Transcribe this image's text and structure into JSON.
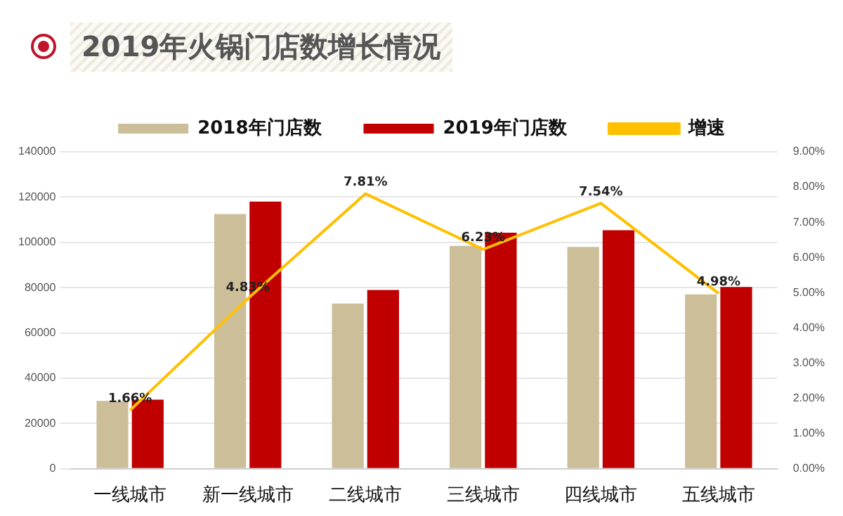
{
  "chart_data": {
    "type": "bar",
    "title": "2019年火锅门店数增长情况",
    "categories": [
      "一线城市",
      "新一线城市",
      "二线城市",
      "三线城市",
      "四线城市",
      "五线城市"
    ],
    "series": [
      {
        "name": "2018年门店数",
        "color": "#cdbe9a",
        "values": [
          30000,
          112500,
          73000,
          98500,
          98000,
          77000
        ]
      },
      {
        "name": "2019年门店数",
        "color": "#c00000",
        "values": [
          30500,
          118000,
          79000,
          104300,
          105400,
          80300
        ]
      },
      {
        "name": "增速",
        "type": "line",
        "axis": "y2",
        "color": "#ffc000",
        "values": [
          1.66,
          4.83,
          7.81,
          6.23,
          7.54,
          4.98
        ],
        "value_labels": [
          "1.66%",
          "4.83%",
          "7.81%",
          "6.23%",
          "7.54%",
          "4.98%"
        ]
      }
    ],
    "ylim": [
      0,
      140000
    ],
    "yticks": [
      0,
      20000,
      40000,
      60000,
      80000,
      100000,
      120000,
      140000
    ],
    "y2lim": [
      0,
      9
    ],
    "y2ticks": [
      {
        "value": 0,
        "label": "0.00%"
      },
      {
        "value": 1,
        "label": "1.00%"
      },
      {
        "value": 2,
        "label": "2.00%"
      },
      {
        "value": 3,
        "label": "3.00%"
      },
      {
        "value": 4,
        "label": "4.00%"
      },
      {
        "value": 5,
        "label": "5.00%"
      },
      {
        "value": 6,
        "label": "6.00%"
      },
      {
        "value": 7,
        "label": "7.00%"
      },
      {
        "value": 8,
        "label": "8.00%"
      },
      {
        "value": 9,
        "label": "9.00%"
      }
    ],
    "grid": "y",
    "legend": "top",
    "marker": "none"
  }
}
